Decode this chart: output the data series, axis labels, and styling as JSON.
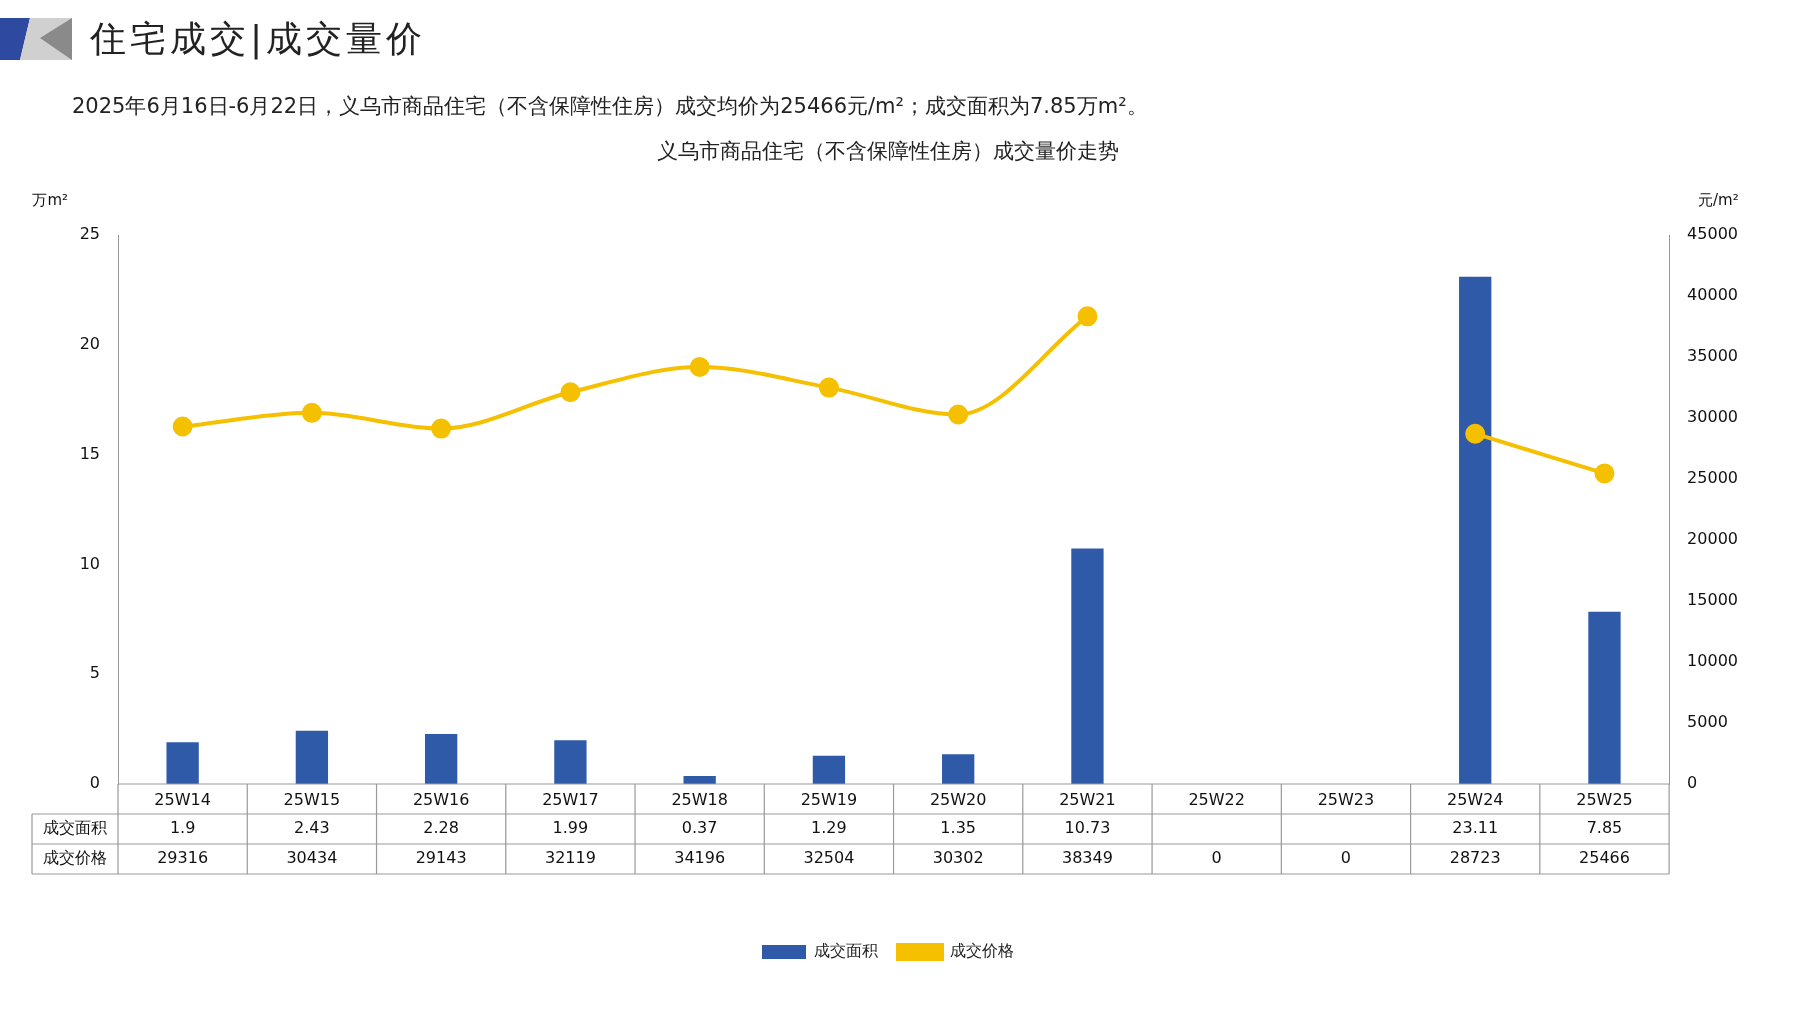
{
  "chart_data": {
    "type": "bar",
    "title": "义乌市商品住宅（不含保障性住房）成交量价走势",
    "subtitle": "2025年6月16日-6月22日，义乌市商品住宅（不含保障性住房）成交均价为25466元/m²；成交面积为7.85万m²。",
    "annotations": [
      "住宅成交|成交量价"
    ],
    "ylabel": "万m²",
    "y2label": "元/m²",
    "categories": [
      "25W14",
      "25W15",
      "25W16",
      "25W17",
      "25W18",
      "25W19",
      "25W20",
      "25W21",
      "25W22",
      "25W23",
      "25W24",
      "25W25"
    ],
    "series": [
      {
        "name": "成交面积",
        "color": "#2e5aa8",
        "values": [
          1.9,
          2.43,
          2.28,
          1.99,
          0.37,
          1.29,
          1.35,
          10.73,
          null,
          null,
          23.11,
          7.85
        ],
        "value_labels": [
          "1.9",
          "2.43",
          "2.28",
          "1.99",
          "0.37",
          "1.29",
          "1.35",
          "10.73",
          null,
          null,
          "23.11",
          "7.85"
        ]
      },
      {
        "name": "成交价格",
        "type": "line",
        "axis": "y2",
        "color": "#f5c000",
        "marker": "circle",
        "values": [
          29316,
          30434,
          29143,
          32119,
          34196,
          32504,
          30302,
          38349,
          null,
          null,
          28723,
          25466
        ],
        "value_labels": [
          "29316",
          "30434",
          "29143",
          "32119",
          "34196",
          "32504",
          "30302",
          "38349",
          "0",
          "0",
          "28723",
          "25466"
        ]
      }
    ],
    "ylim": [
      0,
      25
    ],
    "yticks": [
      0,
      5,
      10,
      15,
      20,
      25
    ],
    "y2lim": [
      0,
      45000
    ],
    "y2ticks": [
      0,
      5000,
      10000,
      15000,
      20000,
      25000,
      30000,
      35000,
      40000,
      45000
    ],
    "legend": "bottom"
  }
}
